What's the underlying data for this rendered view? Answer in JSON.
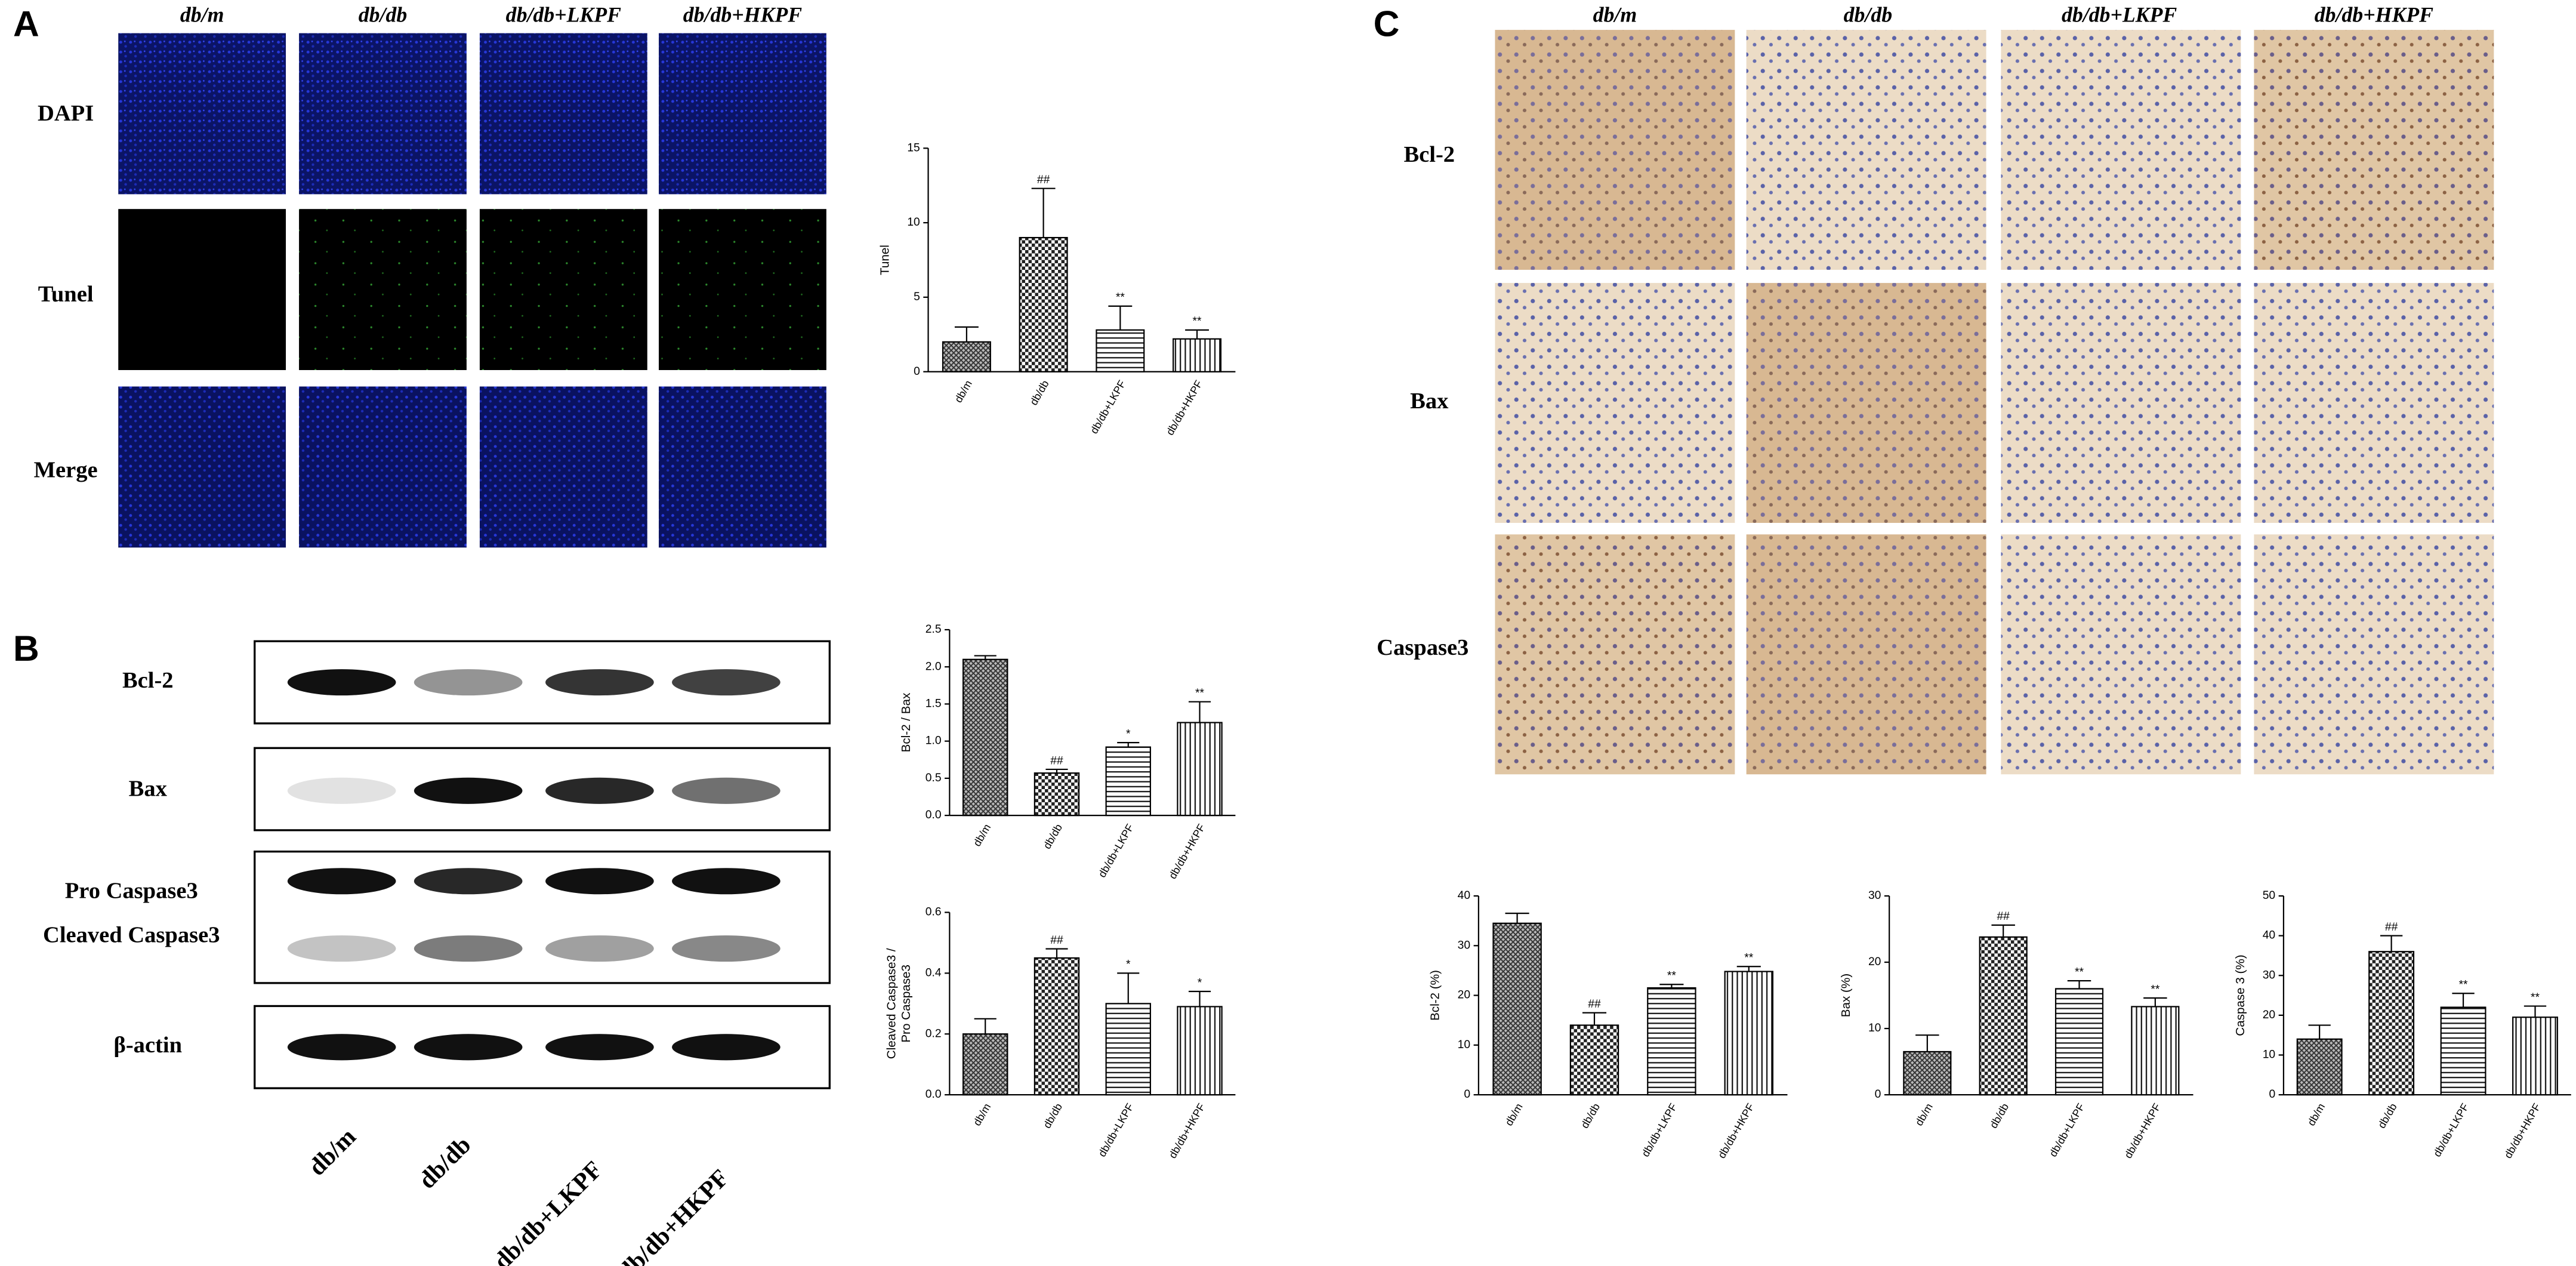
{
  "panel_a": {
    "label": "A",
    "columns": [
      "db/m",
      "db/db",
      "db/db+LKPF",
      "db/db+HKPF"
    ],
    "rows": [
      "DAPI",
      "Tunel",
      "Merge"
    ]
  },
  "panel_b": {
    "label": "B",
    "rows": [
      "Bcl-2",
      "Bax",
      "Pro Caspase3",
      "Cleaved Caspase3",
      "β-actin"
    ],
    "lanes": [
      "db/m",
      "db/db",
      "db/db+LKPF",
      "db/db+HKPF"
    ]
  },
  "panel_c": {
    "label": "C",
    "columns": [
      "db/m",
      "db/db",
      "db/db+LKPF",
      "db/db+HKPF"
    ],
    "rows": [
      "Bcl-2",
      "Bax",
      "Caspase3"
    ]
  },
  "chart_data": [
    {
      "type": "bar",
      "ylabel": [
        "Tunel"
      ],
      "categories": [
        "db/m",
        "db/db",
        "db/db+LKPF",
        "db/db+HKPF"
      ],
      "values": [
        2,
        9,
        2.8,
        2.2
      ],
      "errors": [
        1,
        3.3,
        1.6,
        0.6
      ],
      "annotations": [
        null,
        "##",
        "**",
        "**"
      ],
      "ylim": [
        0,
        15
      ],
      "yticks": [
        0,
        5,
        10,
        15
      ],
      "patterns": [
        "crosshatch",
        "checker",
        "horizontal",
        "vertical"
      ],
      "color": "#000000"
    },
    {
      "type": "bar",
      "ylabel": [
        "Bcl-2 / Bax"
      ],
      "categories": [
        "db/m",
        "db/db",
        "db/db+LKPF",
        "db/db+HKPF"
      ],
      "values": [
        2.1,
        0.57,
        0.92,
        1.25
      ],
      "errors": [
        0.05,
        0.05,
        0.06,
        0.28
      ],
      "annotations": [
        null,
        "##",
        "*",
        "**"
      ],
      "ylim": [
        0,
        2.5
      ],
      "yticks": [
        {
          "value": 0,
          "label": "0.0"
        },
        0.5,
        {
          "value": 1,
          "label": "1.0"
        },
        1.5,
        {
          "value": 2,
          "label": "2.0"
        },
        2.5
      ],
      "patterns": [
        "crosshatch",
        "checker",
        "horizontal",
        "vertical"
      ],
      "color": "#000000"
    },
    {
      "type": "bar",
      "ylabel": [
        "Cleaved Caspase3 /",
        "Pro Caspase3"
      ],
      "categories": [
        "db/m",
        "db/db",
        "db/db+LKPF",
        "db/db+HKPF"
      ],
      "values": [
        0.2,
        0.45,
        0.3,
        0.29
      ],
      "errors": [
        0.05,
        0.03,
        0.1,
        0.05
      ],
      "annotations": [
        null,
        "##",
        "*",
        "*"
      ],
      "ylim": [
        0,
        0.6
      ],
      "yticks": [
        {
          "value": 0,
          "label": "0.0"
        },
        0.2,
        0.4,
        0.6
      ],
      "patterns": [
        "crosshatch",
        "checker",
        "horizontal",
        "vertical"
      ],
      "color": "#000000"
    },
    {
      "type": "bar",
      "ylabel": [
        "Bcl-2 (%)"
      ],
      "categories": [
        "db/m",
        "db/db",
        "db/db+LKPF",
        "db/db+HKPF"
      ],
      "values": [
        34.5,
        14,
        21.5,
        24.8
      ],
      "errors": [
        2,
        2.5,
        0.7,
        1
      ],
      "annotations": [
        null,
        "##",
        "**",
        "**"
      ],
      "ylim": [
        0,
        40
      ],
      "yticks": [
        0,
        10,
        20,
        30,
        40
      ],
      "patterns": [
        "crosshatch",
        "checker",
        "horizontal",
        "vertical"
      ],
      "color": "#000000"
    },
    {
      "type": "bar",
      "ylabel": [
        "Bax (%)"
      ],
      "categories": [
        "db/m",
        "db/db",
        "db/db+LKPF",
        "db/db+HKPF"
      ],
      "values": [
        6.5,
        23.8,
        16,
        13.3
      ],
      "errors": [
        2.5,
        1.8,
        1.2,
        1.3
      ],
      "annotations": [
        null,
        "##",
        "**",
        "**"
      ],
      "ylim": [
        0,
        30
      ],
      "yticks": [
        0,
        10,
        20,
        30
      ],
      "patterns": [
        "crosshatch",
        "checker",
        "horizontal",
        "vertical"
      ],
      "color": "#000000"
    },
    {
      "type": "bar",
      "ylabel": [
        "Caspase 3 (%)"
      ],
      "categories": [
        "db/m",
        "db/db",
        "db/db+LKPF",
        "db/db+HKPF"
      ],
      "values": [
        14,
        36,
        22,
        19.5
      ],
      "errors": [
        3.5,
        4,
        3.5,
        2.8
      ],
      "annotations": [
        null,
        "##",
        "**",
        "**"
      ],
      "ylim": [
        0,
        50
      ],
      "yticks": [
        0,
        10,
        20,
        30,
        40,
        50
      ],
      "patterns": [
        "crosshatch",
        "checker",
        "horizontal",
        "vertical"
      ],
      "color": "#000000"
    }
  ]
}
